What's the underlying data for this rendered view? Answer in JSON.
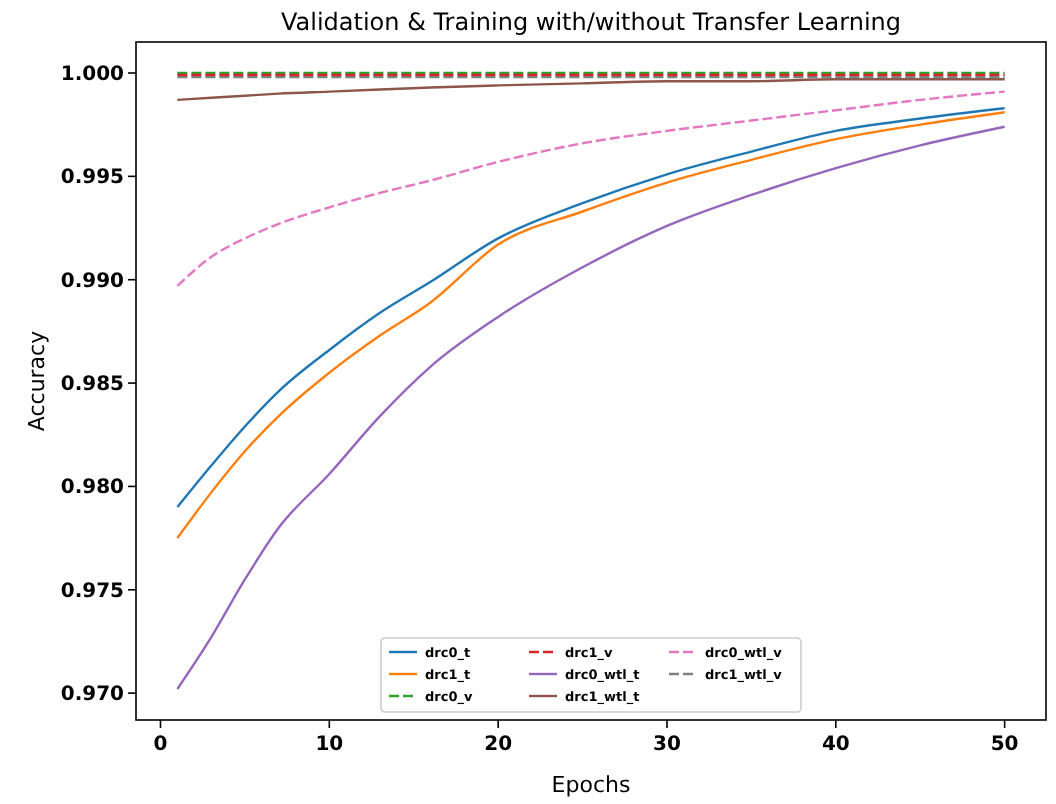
{
  "chart_data": {
    "type": "line",
    "title": "Validation & Training with/without Transfer Learning",
    "xlabel": "Epochs",
    "ylabel": "Accuracy",
    "x": [
      1,
      3,
      5,
      7,
      10,
      13,
      16,
      20,
      25,
      30,
      35,
      40,
      45,
      50
    ],
    "xlim": [
      -1.45,
      52.45
    ],
    "xticks": [
      0,
      10,
      20,
      30,
      40,
      50
    ],
    "ylim": [
      0.9687,
      1.0015
    ],
    "yticks": [
      {
        "value": 0.97,
        "label": "0.970"
      },
      {
        "value": 0.975,
        "label": "0.975"
      },
      {
        "value": 0.98,
        "label": "0.980"
      },
      {
        "value": 0.985,
        "label": "0.985"
      },
      {
        "value": 0.99,
        "label": "0.990"
      },
      {
        "value": 0.995,
        "label": "0.995"
      },
      {
        "value": 1.0,
        "label": "1.000"
      }
    ],
    "grid": false,
    "legend": "bottom",
    "marker": "none",
    "series": [
      {
        "name": "drc0_t",
        "color": "#1f77b4",
        "line_style": "solid",
        "values": [
          0.979,
          0.981,
          0.9829,
          0.9846,
          0.9866,
          0.9884,
          0.9899,
          0.992,
          0.9937,
          0.9951,
          0.9962,
          0.9972,
          0.9978,
          0.9983
        ]
      },
      {
        "name": "drc1_t",
        "color": "#ff7f0e",
        "line_style": "solid",
        "values": [
          0.9775,
          0.9797,
          0.9817,
          0.9834,
          0.9855,
          0.9873,
          0.9889,
          0.9917,
          0.9933,
          0.9947,
          0.9958,
          0.9968,
          0.9975,
          0.9981
        ]
      },
      {
        "name": "drc0_v",
        "color": "#2ca02c",
        "line_style": "dashed",
        "values": [
          1.0,
          1.0,
          1.0,
          1.0,
          1.0,
          1.0,
          1.0,
          1.0,
          1.0,
          1.0,
          1.0,
          1.0,
          1.0,
          1.0
        ]
      },
      {
        "name": "drc1_v",
        "color": "#d62728",
        "line_style": "dashed",
        "values": [
          0.9999,
          0.9999,
          0.9999,
          0.9999,
          0.9999,
          0.9999,
          0.9999,
          0.9999,
          0.9999,
          0.9999,
          0.9999,
          0.9999,
          0.9999,
          0.9999
        ]
      },
      {
        "name": "drc0_wtl_t",
        "color": "#9467bd",
        "line_style": "solid",
        "values": [
          0.9702,
          0.9727,
          0.9755,
          0.978,
          0.9806,
          0.9834,
          0.9858,
          0.9882,
          0.9906,
          0.9926,
          0.9941,
          0.9954,
          0.9965,
          0.9974
        ]
      },
      {
        "name": "drc1_wtl_t",
        "color": "#8c564b",
        "line_style": "solid",
        "values": [
          0.9987,
          0.9988,
          0.9989,
          0.999,
          0.9991,
          0.9992,
          0.9993,
          0.9994,
          0.9995,
          0.9996,
          0.9996,
          0.9997,
          0.9997,
          0.9997
        ]
      },
      {
        "name": "drc0_wtl_v",
        "color": "#e377c2",
        "line_style": "dashed",
        "values": [
          0.9897,
          0.9911,
          0.992,
          0.9927,
          0.9935,
          0.9942,
          0.9948,
          0.9957,
          0.9966,
          0.9972,
          0.9977,
          0.9982,
          0.9987,
          0.9991
        ]
      },
      {
        "name": "drc1_wtl_v",
        "color": "#7f7f7f",
        "line_style": "dashed",
        "values": [
          0.9998,
          0.9998,
          0.9998,
          0.9998,
          0.9998,
          0.9998,
          0.9998,
          0.9998,
          0.9998,
          0.9998,
          0.9998,
          0.9998,
          0.9998,
          0.9998
        ]
      }
    ]
  }
}
